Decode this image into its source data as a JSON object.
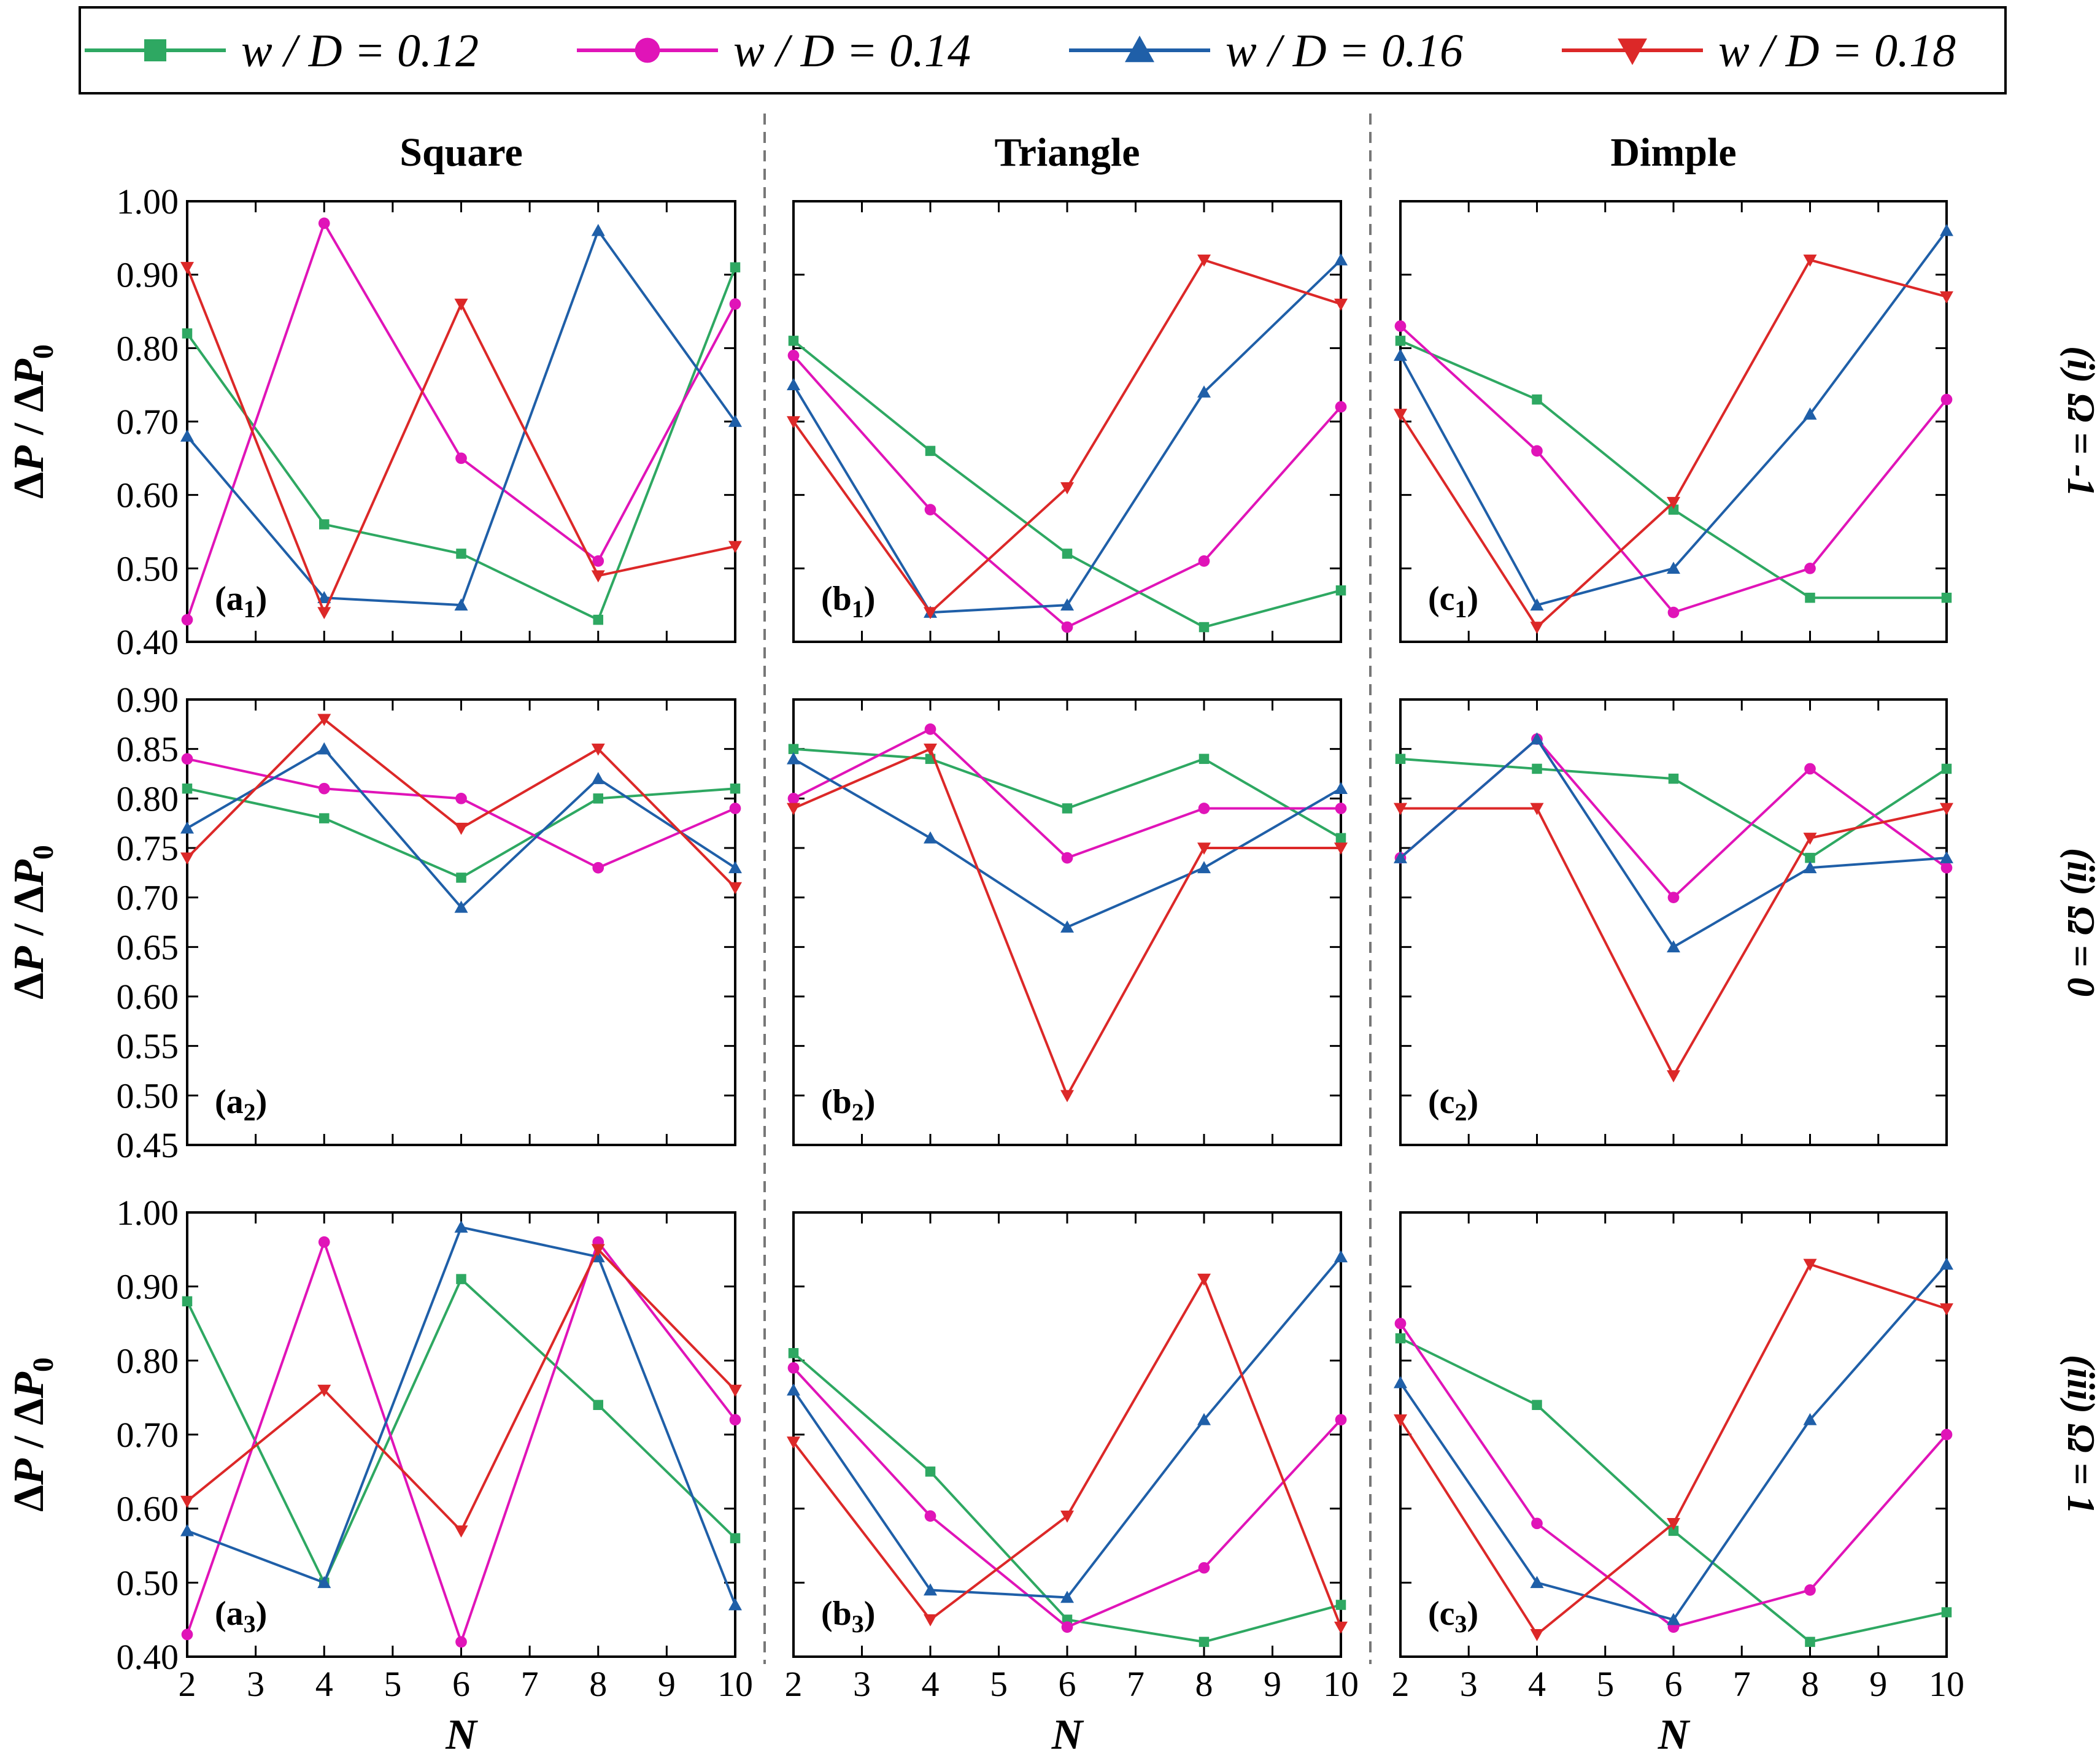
{
  "chart_data": {
    "type": "line",
    "layout": "3x3 grid",
    "x": [
      2,
      4,
      6,
      8,
      10
    ],
    "xticks": [
      "2",
      "3",
      "4",
      "5",
      "6",
      "7",
      "8",
      "9",
      "10"
    ],
    "xlabel": "N",
    "ylabel": "ΔP / ΔP0",
    "legend": {
      "position": "top",
      "entries": [
        {
          "text": "w / D = 0.12",
          "color": "#2ea862",
          "marker": "square"
        },
        {
          "text": "w / D = 0.14",
          "color": "#e014b8",
          "marker": "circle"
        },
        {
          "text": "w / D = 0.16",
          "color": "#1f5fa8",
          "marker": "triangle-up"
        },
        {
          "text": "w / D = 0.18",
          "color": "#dc2828",
          "marker": "triangle-down"
        }
      ]
    },
    "columns": [
      "Square",
      "Triangle",
      "Dimple"
    ],
    "rows": [
      {
        "label": "(i) Ω = -1",
        "ylim": [
          0.4,
          1.0
        ],
        "yticks": [
          "0.40",
          "0.50",
          "0.60",
          "0.70",
          "0.80",
          "0.90",
          "1.00"
        ],
        "panels": [
          {
            "label_main": "(a",
            "label_sub": "1",
            "label_end": ")",
            "series": [
              {
                "name": "w / D = 0.12",
                "values": [
                  0.82,
                  0.56,
                  0.52,
                  0.43,
                  0.91
                ]
              },
              {
                "name": "w / D = 0.14",
                "values": [
                  0.43,
                  0.97,
                  0.65,
                  0.51,
                  0.86
                ]
              },
              {
                "name": "w / D = 0.16",
                "values": [
                  0.68,
                  0.46,
                  0.45,
                  0.96,
                  0.7
                ]
              },
              {
                "name": "w / D = 0.18",
                "values": [
                  0.91,
                  0.44,
                  0.86,
                  0.49,
                  0.53
                ]
              }
            ]
          },
          {
            "label_main": "(b",
            "label_sub": "1",
            "label_end": ")",
            "series": [
              {
                "name": "w / D = 0.12",
                "values": [
                  0.81,
                  0.66,
                  0.52,
                  0.42,
                  0.47
                ]
              },
              {
                "name": "w / D = 0.14",
                "values": [
                  0.79,
                  0.58,
                  0.42,
                  0.51,
                  0.72
                ]
              },
              {
                "name": "w / D = 0.16",
                "values": [
                  0.75,
                  0.44,
                  0.45,
                  0.74,
                  0.92
                ]
              },
              {
                "name": "w / D = 0.18",
                "values": [
                  0.7,
                  0.44,
                  0.61,
                  0.92,
                  0.86
                ]
              }
            ]
          },
          {
            "label_main": "(c",
            "label_sub": "1",
            "label_end": ")",
            "series": [
              {
                "name": "w / D = 0.12",
                "values": [
                  0.81,
                  0.73,
                  0.58,
                  0.46,
                  0.46
                ]
              },
              {
                "name": "w / D = 0.14",
                "values": [
                  0.83,
                  0.66,
                  0.44,
                  0.5,
                  0.73
                ]
              },
              {
                "name": "w / D = 0.16",
                "values": [
                  0.79,
                  0.45,
                  0.5,
                  0.71,
                  0.96
                ]
              },
              {
                "name": "w / D = 0.18",
                "values": [
                  0.71,
                  0.42,
                  0.59,
                  0.92,
                  0.87
                ]
              }
            ]
          }
        ]
      },
      {
        "label": "(ii) Ω = 0",
        "ylim": [
          0.45,
          0.9
        ],
        "yticks": [
          "0.45",
          "0.50",
          "0.55",
          "0.60",
          "0.65",
          "0.70",
          "0.75",
          "0.80",
          "0.85",
          "0.90"
        ],
        "panels": [
          {
            "label_main": "(a",
            "label_sub": "2",
            "label_end": ")",
            "series": [
              {
                "name": "w / D = 0.12",
                "values": [
                  0.81,
                  0.78,
                  0.72,
                  0.8,
                  0.81
                ]
              },
              {
                "name": "w / D = 0.14",
                "values": [
                  0.84,
                  0.81,
                  0.8,
                  0.73,
                  0.79
                ]
              },
              {
                "name": "w / D = 0.16",
                "values": [
                  0.77,
                  0.85,
                  0.69,
                  0.82,
                  0.73
                ]
              },
              {
                "name": "w / D = 0.18",
                "values": [
                  0.74,
                  0.88,
                  0.77,
                  0.85,
                  0.71
                ]
              }
            ]
          },
          {
            "label_main": "(b",
            "label_sub": "2",
            "label_end": ")",
            "series": [
              {
                "name": "w / D = 0.12",
                "values": [
                  0.85,
                  0.84,
                  0.79,
                  0.84,
                  0.76
                ]
              },
              {
                "name": "w / D = 0.14",
                "values": [
                  0.8,
                  0.87,
                  0.74,
                  0.79,
                  0.79
                ]
              },
              {
                "name": "w / D = 0.16",
                "values": [
                  0.84,
                  0.76,
                  0.67,
                  0.73,
                  0.81
                ]
              },
              {
                "name": "w / D = 0.18",
                "values": [
                  0.79,
                  0.85,
                  0.5,
                  0.75,
                  0.75
                ]
              }
            ]
          },
          {
            "label_main": "(c",
            "label_sub": "2",
            "label_end": ")",
            "series": [
              {
                "name": "w / D = 0.12",
                "values": [
                  0.84,
                  0.83,
                  0.82,
                  0.74,
                  0.83
                ]
              },
              {
                "name": "w / D = 0.14",
                "values": [
                  0.74,
                  0.86,
                  0.7,
                  0.83,
                  0.73
                ]
              },
              {
                "name": "w / D = 0.16",
                "values": [
                  0.74,
                  0.86,
                  0.65,
                  0.73,
                  0.74
                ]
              },
              {
                "name": "w / D = 0.18",
                "values": [
                  0.79,
                  0.79,
                  0.52,
                  0.76,
                  0.79
                ]
              }
            ]
          }
        ]
      },
      {
        "label": "(iii) Ω = 1",
        "ylim": [
          0.4,
          1.0
        ],
        "yticks": [
          "0.40",
          "0.50",
          "0.60",
          "0.70",
          "0.80",
          "0.90",
          "1.00"
        ],
        "panels": [
          {
            "label_main": "(a",
            "label_sub": "3",
            "label_end": ")",
            "series": [
              {
                "name": "w / D = 0.12",
                "values": [
                  0.88,
                  0.5,
                  0.91,
                  0.74,
                  0.56
                ]
              },
              {
                "name": "w / D = 0.14",
                "values": [
                  0.43,
                  0.96,
                  0.42,
                  0.96,
                  0.72
                ]
              },
              {
                "name": "w / D = 0.16",
                "values": [
                  0.57,
                  0.5,
                  0.98,
                  0.94,
                  0.47
                ]
              },
              {
                "name": "w / D = 0.18",
                "values": [
                  0.61,
                  0.76,
                  0.57,
                  0.95,
                  0.76
                ]
              }
            ]
          },
          {
            "label_main": "(b",
            "label_sub": "3",
            "label_end": ")",
            "series": [
              {
                "name": "w / D = 0.12",
                "values": [
                  0.81,
                  0.65,
                  0.45,
                  0.42,
                  0.47
                ]
              },
              {
                "name": "w / D = 0.14",
                "values": [
                  0.79,
                  0.59,
                  0.44,
                  0.52,
                  0.72
                ]
              },
              {
                "name": "w / D = 0.16",
                "values": [
                  0.76,
                  0.49,
                  0.48,
                  0.72,
                  0.94
                ]
              },
              {
                "name": "w / D = 0.18",
                "values": [
                  0.69,
                  0.45,
                  0.59,
                  0.91,
                  0.44
                ]
              }
            ]
          },
          {
            "label_main": "(c",
            "label_sub": "3",
            "label_end": ")",
            "series": [
              {
                "name": "w / D = 0.12",
                "values": [
                  0.83,
                  0.74,
                  0.57,
                  0.42,
                  0.46
                ]
              },
              {
                "name": "w / D = 0.14",
                "values": [
                  0.85,
                  0.58,
                  0.44,
                  0.49,
                  0.7
                ]
              },
              {
                "name": "w / D = 0.16",
                "values": [
                  0.77,
                  0.5,
                  0.45,
                  0.72,
                  0.93
                ]
              },
              {
                "name": "w / D = 0.18",
                "values": [
                  0.72,
                  0.43,
                  0.58,
                  0.93,
                  0.87
                ]
              }
            ]
          }
        ]
      }
    ]
  }
}
